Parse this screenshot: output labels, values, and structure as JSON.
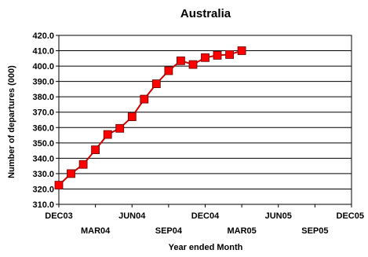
{
  "chart_data": {
    "type": "line",
    "title": "Australia",
    "xlabel": "Year ended Month",
    "ylabel": "Number of departures (000)",
    "ylim": [
      310,
      420
    ],
    "yticks": [
      310,
      320,
      330,
      340,
      350,
      360,
      370,
      380,
      390,
      400,
      410,
      420
    ],
    "ytick_labels": [
      "310.0",
      "320.0",
      "330.0",
      "340.0",
      "350.0",
      "360.0",
      "370.0",
      "380.0",
      "390.0",
      "400.0",
      "410.0",
      "420.0"
    ],
    "xlim": [
      0,
      24
    ],
    "xticks": [
      {
        "label": "DEC03",
        "month_index": 0,
        "row": 1
      },
      {
        "label": "MAR04",
        "month_index": 3,
        "row": 2
      },
      {
        "label": "JUN04",
        "month_index": 6,
        "row": 1
      },
      {
        "label": "SEP04",
        "month_index": 9,
        "row": 2
      },
      {
        "label": "DEC04",
        "month_index": 12,
        "row": 1
      },
      {
        "label": "MAR05",
        "month_index": 15,
        "row": 2
      },
      {
        "label": "JUN05",
        "month_index": 18,
        "row": 1
      },
      {
        "label": "SEP05",
        "month_index": 21,
        "row": 2
      },
      {
        "label": "DEC05",
        "month_index": 24,
        "row": 1
      }
    ],
    "grid": "horizontal",
    "series": [
      {
        "name": "",
        "color": "#cc0000",
        "marker_color": "#ff0000",
        "marker": "square",
        "x": [
          0,
          1,
          2,
          3,
          4,
          5,
          6,
          7,
          8,
          9,
          10,
          11,
          12,
          13,
          14,
          15
        ],
        "values": [
          322.5,
          330.0,
          336.0,
          345.5,
          355.5,
          359.5,
          367.0,
          378.5,
          388.5,
          397.0,
          403.5,
          401.0,
          405.5,
          407.0,
          407.5,
          410.0
        ]
      }
    ]
  }
}
